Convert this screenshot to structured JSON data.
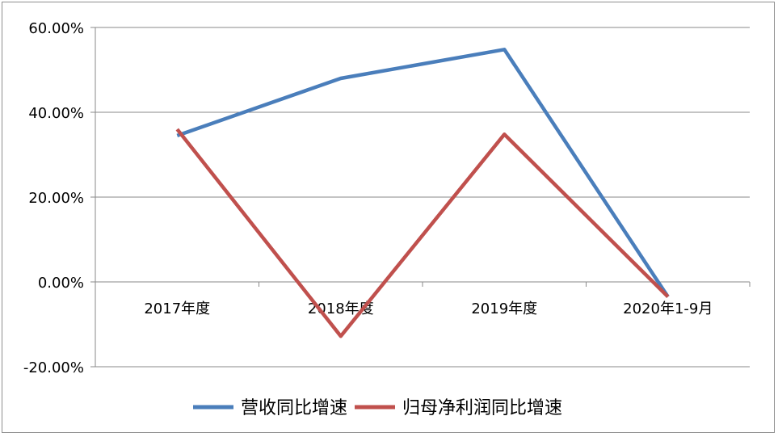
{
  "chart_data": {
    "type": "line",
    "categories": [
      "2017年度",
      "2018年度",
      "2019年度",
      "2020年1-9月"
    ],
    "series": [
      {
        "name": "营收同比增速",
        "color": "#4a7ebb",
        "values": [
          34.5,
          48.0,
          54.8,
          -3.5
        ]
      },
      {
        "name": "归母净利润同比增速",
        "color": "#c0504d",
        "values": [
          36.0,
          -12.8,
          34.8,
          -3.5
        ]
      }
    ],
    "ylim": [
      -20,
      60
    ],
    "yticks": [
      -20,
      0,
      20,
      40,
      60
    ],
    "ytick_labels": [
      "-20.00%",
      "0.00%",
      "20.00%",
      "40.00%",
      "60.00%"
    ],
    "grid": true,
    "legend_position": "bottom"
  }
}
